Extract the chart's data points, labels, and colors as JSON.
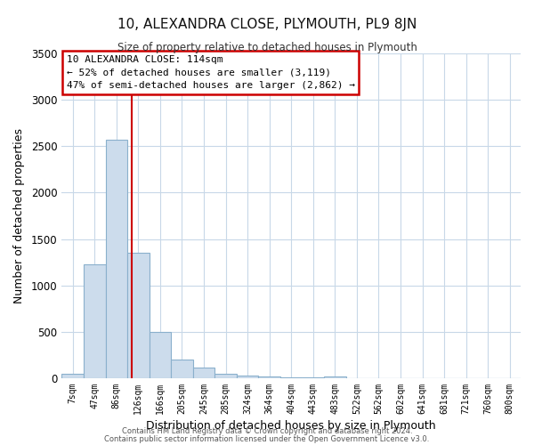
{
  "title": "10, ALEXANDRA CLOSE, PLYMOUTH, PL9 8JN",
  "subtitle": "Size of property relative to detached houses in Plymouth",
  "xlabel": "Distribution of detached houses by size in Plymouth",
  "ylabel": "Number of detached properties",
  "bar_labels": [
    "7sqm",
    "47sqm",
    "86sqm",
    "126sqm",
    "166sqm",
    "205sqm",
    "245sqm",
    "285sqm",
    "324sqm",
    "364sqm",
    "404sqm",
    "443sqm",
    "483sqm",
    "522sqm",
    "562sqm",
    "602sqm",
    "641sqm",
    "681sqm",
    "721sqm",
    "760sqm",
    "800sqm"
  ],
  "bar_values": [
    50,
    1230,
    2570,
    1350,
    500,
    200,
    110,
    50,
    30,
    15,
    5,
    5,
    20,
    0,
    0,
    0,
    0,
    0,
    0,
    0,
    0
  ],
  "bar_color": "#ccdcec",
  "bar_edgecolor": "#8ab0cc",
  "vline_x_index": 2.72,
  "vline_color": "#cc0000",
  "ylim": [
    0,
    3500
  ],
  "yticks": [
    0,
    500,
    1000,
    1500,
    2000,
    2500,
    3000,
    3500
  ],
  "annotation_title": "10 ALEXANDRA CLOSE: 114sqm",
  "annotation_line1": "← 52% of detached houses are smaller (3,119)",
  "annotation_line2": "47% of semi-detached houses are larger (2,862) →",
  "annotation_box_color": "#ffffff",
  "annotation_box_edge": "#cc0000",
  "footer1": "Contains HM Land Registry data © Crown copyright and database right 2024.",
  "footer2": "Contains public sector information licensed under the Open Government Licence v3.0.",
  "background_color": "#ffffff",
  "grid_color": "#c8d8e8"
}
